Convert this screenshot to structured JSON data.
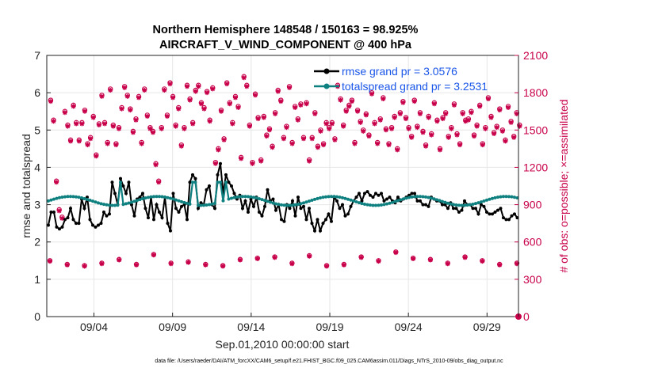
{
  "chart_data": {
    "type": "line",
    "title": "Northern Hemisphere 148548 / 150163 = 98.925%",
    "subtitle": "AIRCRAFT_V_WIND_COMPONENT @ 400 hPa",
    "xlabel": "Sep.01,2010 00:00:00 start",
    "ylabel": "rmse and totalspread",
    "ylabel_right": "# of obs: o=possible; ×=assimilated",
    "xlim": [
      1,
      31
    ],
    "ylim": [
      0,
      7
    ],
    "ylim_right": [
      0,
      2100
    ],
    "x_ticks": [
      4,
      9,
      14,
      19,
      24,
      29
    ],
    "x_tick_labels": [
      "09/04",
      "09/09",
      "09/14",
      "09/19",
      "09/24",
      "09/29"
    ],
    "y_ticks": [
      0,
      1,
      2,
      3,
      4,
      5,
      6,
      7
    ],
    "y_tick_labels": [
      "0",
      "1",
      "2",
      "3",
      "4",
      "5",
      "6",
      "7"
    ],
    "y_ticks_right": [
      0,
      300,
      600,
      900,
      1200,
      1500,
      1800,
      2100
    ],
    "y_tick_labels_right": [
      "0",
      "300",
      "600",
      "900",
      "1200",
      "1500",
      "1800",
      "2100"
    ],
    "legend": [
      "rmse grand pr = 3.0576",
      "totalspread grand pr = 3.2531"
    ],
    "footer": "data file: /Users/raeder/DAI/ATM_forcXX/CAM6_setup/f.e21.FHIST_BGC.f09_025.CAM6assim.011/Diags_NTrS_2010-09/obs_diag_output.nc",
    "colors": {
      "rmse": "#000000",
      "totalspread": "#0f8080",
      "obs": "#c8004a",
      "grid": "#e6e6e6"
    },
    "series": [
      {
        "name": "rmse",
        "values": [
          2.45,
          2.8,
          2.8,
          2.4,
          2.35,
          2.4,
          2.6,
          2.65,
          2.9,
          2.6,
          2.5,
          2.5,
          3.15,
          2.9,
          3.2,
          2.6,
          2.45,
          2.4,
          2.45,
          2.5,
          2.8,
          2.7,
          2.75,
          3.6,
          3.3,
          3.0,
          3.7,
          3.5,
          3.3,
          3.6,
          3.0,
          2.7,
          3.15,
          3.2,
          3.3,
          2.9,
          2.65,
          3.2,
          2.6,
          3.0,
          2.8,
          2.65,
          3.2,
          2.5,
          2.3,
          3.3,
          2.9,
          2.8,
          2.95,
          3.0,
          2.6,
          3.6,
          3.8,
          3.7,
          2.9,
          3.05,
          3.0,
          3.4,
          3.5,
          3.0,
          2.9,
          3.8,
          4.1,
          3.3,
          3.8,
          3.6,
          3.5,
          3.3,
          3.15,
          3.25,
          2.9,
          3.1,
          2.8,
          3.15,
          2.95,
          3.2,
          2.8,
          2.7,
          2.95,
          3.4,
          3.1,
          3.15,
          2.85,
          3.0,
          2.6,
          2.55,
          3.0,
          2.9,
          3.1,
          2.7,
          3.2,
          2.9,
          2.95,
          2.6,
          2.9,
          2.5,
          2.3,
          2.6,
          2.3,
          2.5,
          2.6,
          2.75,
          2.55,
          3.2,
          3.1,
          2.9,
          3.0,
          2.7,
          2.75,
          2.95,
          3.1,
          3.2,
          3.3,
          3.1,
          3.3,
          3.35,
          3.25,
          3.2,
          3.3,
          3.25,
          3.3,
          3.1,
          3.15,
          3.2,
          3.1,
          3.05,
          3.2,
          3.1,
          3.15,
          3.2,
          3.25,
          3.3,
          3.3,
          3.1,
          3.1,
          3.0,
          3.0,
          2.95,
          3.2,
          3.15,
          3.1,
          3.1,
          3.0,
          3.0,
          2.9,
          3.05,
          2.9,
          2.9,
          2.8,
          2.85,
          3.1,
          3.0,
          3.0,
          2.9,
          2.9,
          2.75,
          3.0,
          2.95,
          2.8,
          2.75,
          2.75,
          2.8,
          2.85,
          2.9,
          2.65,
          2.6,
          2.6,
          2.7,
          2.75,
          2.65
        ]
      }
    ],
    "obs_possible": [
      1740,
      1580,
      1090,
      860,
      800,
      1650,
      1540,
      1420,
      1700,
      1560,
      1420,
      1560,
      1660,
      1390,
      1440,
      1610,
      1300,
      1550,
      1780,
      1560,
      1400,
      1830,
      1540,
      1390,
      1520,
      1680,
      1850,
      1780,
      1670,
      1490,
      1590,
      1770,
      1400,
      1830,
      1620,
      1520,
      1490,
      1230,
      1090,
      1520,
      1830,
      1620,
      1880,
      1770,
      1540,
      1680,
      1380,
      1520,
      1860,
      1750,
      1560,
      1820,
      1860,
      1720,
      1680,
      1810,
      1580,
      1840,
      1240,
      1350,
      1660,
      1430,
      1880,
      1720,
      1560,
      1770,
      1690,
      1280,
      1930,
      1860,
      1540,
      1240,
      1790,
      1600,
      1260,
      1610,
      1460,
      1510,
      1370,
      1640,
      1820,
      1740,
      1440,
      1530,
      1850,
      1400,
      1690,
      1590,
      1710,
      1440,
      1720,
      1260,
      1440,
      1640,
      1370,
      1500,
      1390,
      1560,
      1520,
      1560,
      1430,
      1860,
      1750,
      1540,
      1660,
      1700,
      1740,
      1400,
      1660,
      1570,
      1500,
      1630,
      1460,
      1800,
      1560,
      1400,
      1590,
      1760,
      1510,
      1390,
      1520,
      1610,
      1350,
      1640,
      1730,
      1600,
      1520,
      1450,
      1740,
      1530,
      1640,
      1490,
      1380,
      1610,
      1470,
      1720,
      1580,
      1350,
      1600,
      1640,
      1450,
      1520,
      1710,
      1470,
      1390,
      1640,
      1580,
      1590,
      1650,
      1460,
      1540,
      1700,
      1390,
      1520,
      1760,
      1610,
      1480,
      1530,
      1670,
      1500,
      1420,
      1690,
      1570,
      1450,
      1640,
      1540
    ],
    "obs_assimilated": [
      1730,
      1570,
      1080,
      850,
      790,
      1640,
      1530,
      1410,
      1690,
      1550,
      1410,
      1550,
      1650,
      1380,
      1430,
      1600,
      1290,
      1540,
      1770,
      1550,
      1390,
      1820,
      1530,
      1380,
      1510,
      1670,
      1840,
      1770,
      1660,
      1480,
      1580,
      1760,
      1390,
      1820,
      1610,
      1510,
      1480,
      1220,
      1080,
      1510,
      1820,
      1610,
      1870,
      1760,
      1530,
      1670,
      1370,
      1510,
      1850,
      1740,
      1550,
      1810,
      1850,
      1710,
      1670,
      1800,
      1570,
      1830,
      1230,
      1340,
      1650,
      1420,
      1870,
      1710,
      1550,
      1760,
      1680,
      1270,
      1920,
      1850,
      1530,
      1230,
      1780,
      1590,
      1250,
      1600,
      1450,
      1500,
      1360,
      1630,
      1810,
      1730,
      1430,
      1520,
      1840,
      1390,
      1680,
      1580,
      1700,
      1430,
      1710,
      1250,
      1430,
      1630,
      1360,
      1490,
      1380,
      1550,
      1510,
      1550,
      1420,
      1850,
      1740,
      1530,
      1650,
      1690,
      1730,
      1390,
      1650,
      1560,
      1490,
      1620,
      1450,
      1790,
      1550,
      1390,
      1580,
      1750,
      1500,
      1380,
      1510,
      1600,
      1340,
      1630,
      1720,
      1590,
      1510,
      1440,
      1730,
      1520,
      1630,
      1480,
      1370,
      1600,
      1460,
      1710,
      1570,
      1340,
      1590,
      1630,
      1440,
      1510,
      1700,
      1460,
      1380,
      1630,
      1570,
      1580,
      1640,
      1450,
      1530,
      1690,
      1380,
      1510,
      1750,
      1600,
      1470,
      1520,
      1660,
      1490,
      1410,
      1680,
      1560,
      1440,
      1630,
      1530
    ]
  }
}
